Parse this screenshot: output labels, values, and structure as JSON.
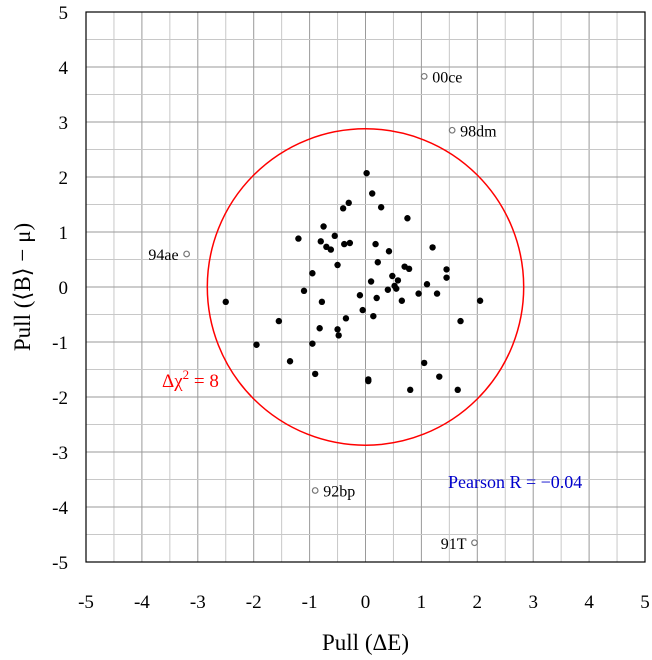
{
  "chart_data": {
    "type": "scatter",
    "xlabel": "Pull (ΔE)",
    "ylabel": "Pull (⟨B⟩ − μ)",
    "xlim": [
      -5,
      5
    ],
    "ylim": [
      -5,
      5
    ],
    "xticks": [
      "-5",
      "-4",
      "-3",
      "-2",
      "-1",
      "0",
      "1",
      "2",
      "3",
      "4",
      "5"
    ],
    "yticks": [
      "5",
      "4",
      "3",
      "2",
      "1",
      "0",
      "-1",
      "-2",
      "-3",
      "-4",
      "-5"
    ],
    "grid": true,
    "colors": {
      "circle": "#ff0000",
      "pearson": "#0000cc",
      "points": "#000000",
      "outliers": "#777777"
    },
    "circle": {
      "center": [
        0,
        0
      ],
      "radius": 2.83,
      "label": "Δχ² = 8"
    },
    "pearson_text": "Pearson R = −0.04",
    "points": [
      [
        -2.5,
        -0.27
      ],
      [
        -1.95,
        -1.05
      ],
      [
        -1.55,
        -0.62
      ],
      [
        -1.35,
        -1.35
      ],
      [
        -1.2,
        0.88
      ],
      [
        -1.1,
        -0.07
      ],
      [
        -0.95,
        -1.03
      ],
      [
        -0.95,
        0.25
      ],
      [
        -0.9,
        -1.58
      ],
      [
        -0.82,
        -0.75
      ],
      [
        -0.8,
        0.83
      ],
      [
        -0.78,
        -0.27
      ],
      [
        -0.75,
        1.1
      ],
      [
        -0.7,
        0.73
      ],
      [
        -0.62,
        0.68
      ],
      [
        -0.55,
        0.93
      ],
      [
        -0.5,
        0.4
      ],
      [
        -0.5,
        -0.77
      ],
      [
        -0.48,
        -0.88
      ],
      [
        -0.4,
        1.43
      ],
      [
        -0.38,
        0.78
      ],
      [
        -0.35,
        -0.57
      ],
      [
        -0.3,
        1.53
      ],
      [
        -0.28,
        0.8
      ],
      [
        -0.1,
        -0.15
      ],
      [
        -0.05,
        -0.42
      ],
      [
        0.02,
        2.07
      ],
      [
        0.05,
        -1.68
      ],
      [
        0.05,
        -1.71
      ],
      [
        0.1,
        0.1
      ],
      [
        0.12,
        1.7
      ],
      [
        0.14,
        -0.53
      ],
      [
        0.18,
        0.78
      ],
      [
        0.2,
        -0.2
      ],
      [
        0.22,
        0.45
      ],
      [
        0.28,
        1.45
      ],
      [
        0.4,
        -0.05
      ],
      [
        0.42,
        0.65
      ],
      [
        0.48,
        0.2
      ],
      [
        0.52,
        0.02
      ],
      [
        0.55,
        -0.03
      ],
      [
        0.58,
        0.12
      ],
      [
        0.65,
        -0.25
      ],
      [
        0.7,
        0.37
      ],
      [
        0.75,
        1.25
      ],
      [
        0.78,
        0.33
      ],
      [
        0.8,
        -1.87
      ],
      [
        0.95,
        -0.12
      ],
      [
        1.05,
        -1.38
      ],
      [
        1.1,
        0.05
      ],
      [
        1.2,
        0.72
      ],
      [
        1.28,
        -0.12
      ],
      [
        1.32,
        -1.63
      ],
      [
        1.45,
        0.32
      ],
      [
        1.45,
        0.17
      ],
      [
        1.65,
        -1.87
      ],
      [
        1.7,
        -0.62
      ],
      [
        2.05,
        -0.25
      ]
    ],
    "outliers": [
      {
        "x": 1.05,
        "y": 3.83,
        "label": "00ce"
      },
      {
        "x": 1.55,
        "y": 2.85,
        "label": "98dm"
      },
      {
        "x": -3.2,
        "y": 0.6,
        "label": "94ae"
      },
      {
        "x": -0.9,
        "y": -3.7,
        "label": "92bp"
      },
      {
        "x": 1.95,
        "y": -4.65,
        "label": "91T"
      }
    ]
  }
}
